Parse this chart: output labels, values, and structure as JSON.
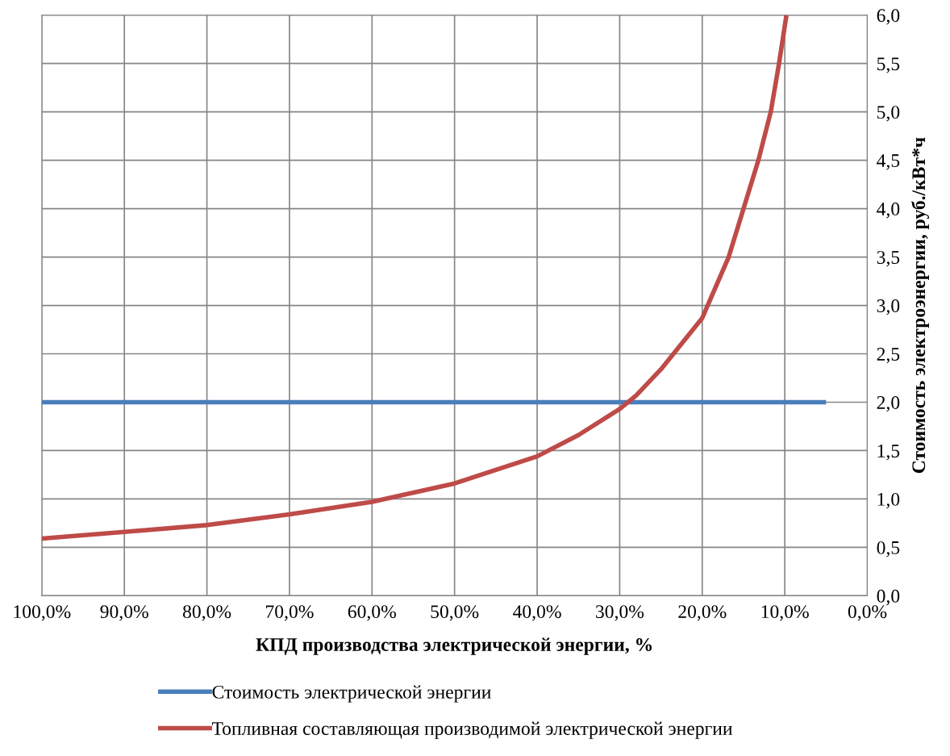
{
  "chart_data": {
    "type": "line",
    "xlabel": "КПД производства электрической энергии, %",
    "ylabel": "Стоимость электроэнергии, руб./кВт*ч",
    "xlim": [
      100,
      0
    ],
    "xticks": [
      {
        "value": 100,
        "label": "100,0%"
      },
      {
        "value": 90,
        "label": "90,0%"
      },
      {
        "value": 80,
        "label": "80,0%"
      },
      {
        "value": 70,
        "label": "70,0%"
      },
      {
        "value": 60,
        "label": "60,0%"
      },
      {
        "value": 50,
        "label": "50,0%"
      },
      {
        "value": 40,
        "label": "40,0%"
      },
      {
        "value": 30,
        "label": "30,0%"
      },
      {
        "value": 20,
        "label": "20,0%"
      },
      {
        "value": 10,
        "label": "10,0%"
      },
      {
        "value": 0,
        "label": "0,0%"
      }
    ],
    "ylim": [
      0,
      6
    ],
    "yticks": [
      {
        "value": 0,
        "label": "0,0"
      },
      {
        "value": 0.5,
        "label": "0,5"
      },
      {
        "value": 1,
        "label": "1,0"
      },
      {
        "value": 1.5,
        "label": "1,5"
      },
      {
        "value": 2,
        "label": "2,0"
      },
      {
        "value": 2.5,
        "label": "2,5"
      },
      {
        "value": 3,
        "label": "3,0"
      },
      {
        "value": 3.5,
        "label": "3,5"
      },
      {
        "value": 4,
        "label": "4,0"
      },
      {
        "value": 4.5,
        "label": "4,5"
      },
      {
        "value": 5,
        "label": "5,0"
      },
      {
        "value": 5.5,
        "label": "5,5"
      },
      {
        "value": 6,
        "label": "6,0"
      }
    ],
    "grid": true,
    "legend": "bottom",
    "marker": "none",
    "line_style": "solid",
    "series": [
      {
        "name": "Стоимость электрической энергии",
        "color": "#4a7ebb",
        "x": [
          100,
          5
        ],
        "values": [
          2.0,
          2.0
        ]
      },
      {
        "name": "Топливная составляющая производимой электрической энергии",
        "color": "#be4b48",
        "x": [
          100,
          90,
          80,
          70,
          60,
          50,
          40,
          35,
          30,
          28,
          25,
          20,
          16.8,
          15,
          13.2,
          11.7,
          10.7,
          9.8
        ],
        "values": [
          0.59,
          0.66,
          0.73,
          0.84,
          0.97,
          1.16,
          1.44,
          1.66,
          1.93,
          2.07,
          2.34,
          2.87,
          3.5,
          4.0,
          4.5,
          5.0,
          5.5,
          6.0
        ]
      }
    ]
  }
}
